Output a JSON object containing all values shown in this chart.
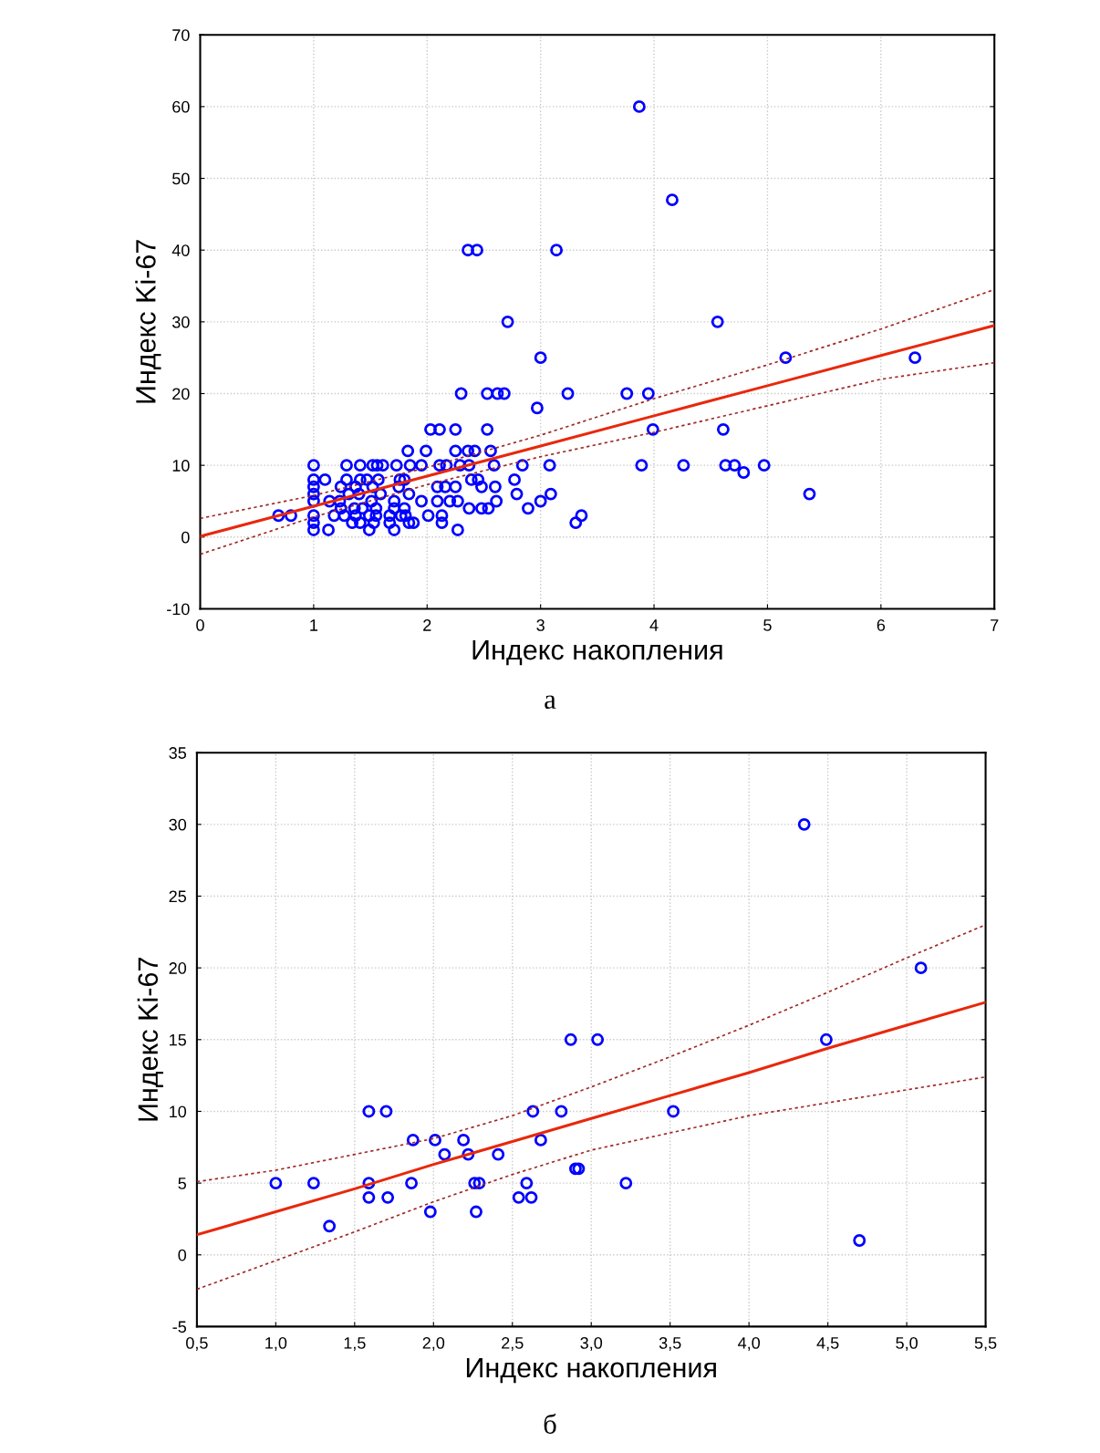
{
  "chart_data": [
    {
      "type": "scatter",
      "xlabel": "Индекс накопления",
      "ylabel": "Индекс Ki-67",
      "annotations": [
        "а"
      ],
      "xlim": [
        0,
        7
      ],
      "ylim": [
        -10,
        70
      ],
      "xticks": [
        0,
        1,
        2,
        3,
        4,
        5,
        6,
        7
      ],
      "yticks": [
        -10,
        0,
        10,
        20,
        30,
        40,
        50,
        60,
        70
      ],
      "grid": true,
      "series": [
        {
          "marker": "circle",
          "color": "#0000ff",
          "x": [
            3.87,
            4.16,
            2.36,
            2.44,
            3.14,
            2.71,
            4.56,
            3.0,
            5.16,
            6.3,
            2.3,
            2.53,
            2.62,
            2.68,
            3.24,
            3.76,
            3.95,
            2.97,
            2.03,
            2.11,
            2.25,
            2.53,
            3.99,
            4.61,
            1.83,
            1.99,
            2.25,
            2.36,
            2.42,
            2.56,
            1.0,
            1.29,
            1.41,
            1.52,
            1.56,
            1.61,
            1.73,
            1.85,
            1.95,
            2.11,
            2.17,
            2.29,
            2.37,
            2.59,
            2.84,
            3.08,
            3.89,
            4.26,
            4.63,
            4.71,
            4.97,
            4.79,
            1.0,
            1.1,
            1.29,
            1.41,
            1.47,
            1.57,
            1.76,
            1.8,
            2.39,
            2.45,
            2.77,
            1.0,
            1.24,
            1.37,
            1.52,
            1.75,
            2.09,
            2.16,
            2.25,
            2.48,
            2.6,
            1.0,
            1.31,
            1.4,
            1.59,
            1.84,
            2.79,
            3.09,
            5.37,
            1.0,
            1.14,
            1.23,
            1.51,
            1.71,
            1.95,
            2.09,
            2.2,
            2.27,
            2.61,
            3.0,
            1.24,
            1.36,
            1.43,
            1.55,
            1.71,
            1.8,
            2.37,
            2.48,
            2.54,
            2.89,
            0.69,
            0.8,
            1.0,
            1.18,
            1.27,
            1.37,
            1.49,
            1.55,
            1.67,
            1.77,
            1.81,
            2.01,
            2.13,
            3.36,
            1.0,
            1.34,
            1.41,
            1.53,
            1.67,
            1.84,
            1.88,
            2.13,
            3.31,
            1.0,
            1.13,
            1.49,
            1.71,
            2.27
          ],
          "values": [
            60,
            47,
            40,
            40,
            40,
            30,
            30,
            25,
            25,
            25,
            20,
            20,
            20,
            20,
            20,
            20,
            20,
            18,
            15,
            15,
            15,
            15,
            15,
            15,
            12,
            12,
            12,
            12,
            12,
            12,
            10,
            10,
            10,
            10,
            10,
            10,
            10,
            10,
            10,
            10,
            10,
            10,
            10,
            10,
            10,
            10,
            10,
            10,
            10,
            10,
            10,
            9,
            8,
            8,
            8,
            8,
            8,
            8,
            8,
            8,
            8,
            8,
            8,
            7,
            7,
            7,
            7,
            7,
            7,
            7,
            7,
            7,
            7,
            6,
            6,
            6,
            6,
            6,
            6,
            6,
            6,
            5,
            5,
            5,
            5,
            5,
            5,
            5,
            5,
            5,
            5,
            5,
            4,
            4,
            4,
            4,
            4,
            4,
            4,
            4,
            4,
            4,
            3,
            3,
            3,
            3,
            3,
            3,
            3,
            3,
            3,
            3,
            3,
            3,
            3,
            3,
            2,
            2,
            2,
            2,
            2,
            2,
            2,
            2,
            2,
            1,
            1,
            1,
            1,
            1
          ]
        },
        {
          "type": "line",
          "marker": "none",
          "color": "#e8280c",
          "line_style": "solid",
          "x": [
            0,
            1,
            2,
            3,
            4,
            5,
            6,
            7
          ],
          "values": [
            0.1,
            4.3,
            8.5,
            12.7,
            16.9,
            21.1,
            25.3,
            29.5
          ]
        },
        {
          "type": "line",
          "marker": "none",
          "color": "#a02828",
          "line_style": "dashed",
          "x": [
            0,
            1,
            2,
            3,
            4,
            5,
            6,
            7
          ],
          "values": [
            -2.4,
            2.8,
            7.3,
            11.2,
            14.6,
            18.3,
            22.0,
            24.3
          ]
        },
        {
          "type": "line",
          "marker": "none",
          "color": "#a02828",
          "line_style": "dashed",
          "x": [
            0,
            1,
            2,
            3,
            4,
            5,
            6,
            7
          ],
          "values": [
            2.6,
            5.8,
            9.7,
            14.2,
            19.3,
            24.0,
            29.0,
            34.5
          ]
        }
      ]
    },
    {
      "type": "scatter",
      "xlabel": "Индекс накопления",
      "ylabel": "Индекс Ki-67",
      "annotations": [
        "б"
      ],
      "xlim": [
        0.5,
        5.5
      ],
      "ylim": [
        -5,
        35
      ],
      "xticks": [
        {
          "value": 0.5,
          "label": "0,5"
        },
        {
          "value": 1.0,
          "label": "1,0"
        },
        {
          "value": 1.5,
          "label": "1,5"
        },
        {
          "value": 2.0,
          "label": "2,0"
        },
        {
          "value": 2.5,
          "label": "2,5"
        },
        {
          "value": 3.0,
          "label": "3,0"
        },
        {
          "value": 3.5,
          "label": "3,5"
        },
        {
          "value": 4.0,
          "label": "4,0"
        },
        {
          "value": 4.5,
          "label": "4,5"
        },
        {
          "value": 5.0,
          "label": "5,0"
        },
        {
          "value": 5.5,
          "label": "5,5"
        }
      ],
      "yticks": [
        -5,
        0,
        5,
        10,
        15,
        20,
        25,
        30,
        35
      ],
      "grid": true,
      "series": [
        {
          "marker": "circle",
          "color": "#0000ff",
          "x": [
            1.0,
            1.24,
            1.34,
            1.59,
            1.7,
            1.59,
            1.59,
            1.71,
            1.87,
            2.01,
            1.86,
            1.98,
            2.07,
            2.19,
            2.22,
            2.26,
            2.29,
            2.27,
            2.41,
            2.54,
            2.59,
            2.62,
            2.63,
            2.68,
            2.81,
            2.87,
            3.04,
            2.9,
            2.92,
            3.22,
            3.52,
            4.35,
            5.09,
            4.49,
            4.7
          ],
          "values": [
            5,
            5,
            2,
            10,
            10,
            5,
            4,
            4,
            8,
            8,
            5,
            3,
            7,
            8,
            7,
            5,
            5,
            3,
            7,
            4,
            5,
            4,
            10,
            8,
            10,
            15,
            15,
            6,
            6,
            5,
            10,
            30,
            20,
            15,
            1
          ]
        },
        {
          "type": "line",
          "marker": "none",
          "color": "#e8280c",
          "line_style": "solid",
          "x": [
            0.5,
            1.0,
            1.5,
            2.0,
            2.5,
            3.0,
            3.5,
            4.0,
            4.5,
            5.0,
            5.5
          ],
          "values": [
            1.4,
            3.0,
            4.6,
            6.3,
            7.9,
            9.5,
            11.1,
            12.7,
            14.4,
            16.0,
            17.6
          ]
        },
        {
          "type": "line",
          "marker": "none",
          "color": "#a02828",
          "line_style": "dashed",
          "x": [
            0.5,
            1.0,
            1.5,
            2.0,
            2.5,
            3.0,
            3.5,
            4.0,
            4.5,
            5.0,
            5.5
          ],
          "values": [
            -2.4,
            -0.4,
            1.6,
            3.7,
            5.6,
            7.3,
            8.5,
            9.7,
            10.6,
            11.5,
            12.4
          ]
        },
        {
          "type": "line",
          "marker": "none",
          "color": "#a02828",
          "line_style": "dashed",
          "x": [
            0.5,
            1.0,
            1.5,
            2.0,
            2.5,
            3.0,
            3.5,
            4.0,
            4.5,
            5.0,
            5.5
          ],
          "values": [
            5.1,
            5.9,
            7.0,
            8.1,
            9.7,
            11.7,
            13.8,
            16.0,
            18.3,
            20.7,
            23.0
          ]
        }
      ]
    }
  ]
}
